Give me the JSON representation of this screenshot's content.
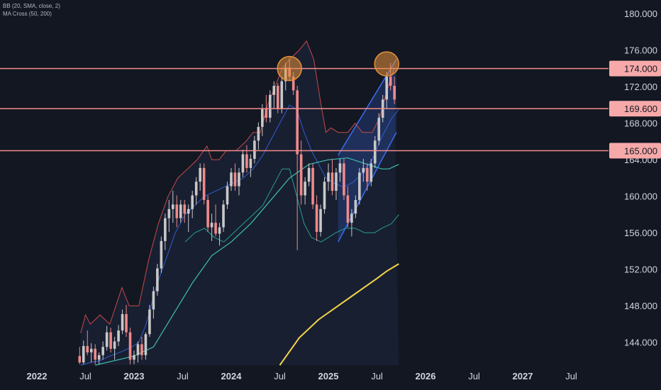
{
  "indicators": {
    "bb": "BB (20, SMA, close, 2)",
    "ma": "MA Cross (50, 200)"
  },
  "colors": {
    "background": "#131722",
    "axis_text": "#d1d4dc",
    "candle_up": "#c8c8c8",
    "candle_down": "#f08a8a",
    "bb_upper": "#c44a4a",
    "bb_basis": "#2f5fd0",
    "bb_lower": "#2a9d8f",
    "bb_fill": "#1e2a44",
    "ma_slow": "#f5d44a",
    "level_line": "#f28b8b",
    "level_label_bg": "#f7a9a9",
    "level_label_text": "#131722",
    "highlight": "#e8923a",
    "channel": "#3a6df0"
  },
  "chart_data": {
    "type": "candlestick",
    "symbol_interval": "weekly",
    "price_axis": {
      "ticks": [
        180,
        176,
        172,
        168,
        164,
        160,
        156,
        152,
        148,
        144
      ],
      "tick_labels": [
        "180.000",
        "176.000",
        "172.000",
        "168.000",
        "164.000",
        "160.000",
        "156.000",
        "152.000",
        "148.000",
        "144.000"
      ],
      "ylim": [
        141.5,
        181.5
      ]
    },
    "time_axis": {
      "ticks": [
        "2022",
        "Jul",
        "2023",
        "Jul",
        "2024",
        "Jul",
        "2025",
        "Jul",
        "2026",
        "Jul",
        "2027",
        "Jul"
      ],
      "tick_index": [
        0,
        1,
        2,
        3,
        4,
        5,
        6,
        7,
        8,
        9,
        10,
        11
      ]
    },
    "horizontal_levels": [
      {
        "value": 174.0,
        "label": "174.000"
      },
      {
        "value": 169.6,
        "label": "169.600"
      },
      {
        "value": 165.0,
        "label": "165.000"
      }
    ],
    "highlights": [
      {
        "time": 5.2,
        "value": 174.0
      },
      {
        "time": 7.2,
        "value": 174.5
      }
    ],
    "ascending_channel": {
      "upper": [
        [
          6.2,
          164.5
        ],
        [
          7.4,
          175.0
        ]
      ],
      "lower": [
        [
          6.2,
          155.0
        ],
        [
          7.4,
          167.0
        ]
      ]
    },
    "bollinger": {
      "upper": [
        [
          0.9,
          145
        ],
        [
          1.0,
          147
        ],
        [
          1.1,
          146
        ],
        [
          1.3,
          147
        ],
        [
          1.5,
          146
        ],
        [
          1.75,
          150
        ],
        [
          1.9,
          148
        ],
        [
          2.1,
          148
        ],
        [
          2.3,
          153
        ],
        [
          2.5,
          157
        ],
        [
          2.7,
          160
        ],
        [
          2.9,
          162
        ],
        [
          3.1,
          163
        ],
        [
          3.3,
          164
        ],
        [
          3.5,
          165.5
        ],
        [
          3.6,
          164
        ],
        [
          3.75,
          164
        ],
        [
          3.9,
          165
        ],
        [
          4.1,
          165
        ],
        [
          4.3,
          166
        ],
        [
          4.45,
          167
        ],
        [
          4.6,
          167
        ],
        [
          4.75,
          170
        ],
        [
          4.9,
          172
        ],
        [
          5.05,
          174
        ],
        [
          5.2,
          175
        ],
        [
          5.4,
          176
        ],
        [
          5.55,
          177
        ],
        [
          5.7,
          175
        ],
        [
          5.85,
          170
        ],
        [
          5.95,
          167
        ],
        [
          6.05,
          167.5
        ],
        [
          6.2,
          167
        ],
        [
          6.4,
          167
        ],
        [
          6.55,
          168
        ],
        [
          6.7,
          167
        ],
        [
          6.9,
          167
        ],
        [
          7.05,
          168.5
        ],
        [
          7.2,
          171.5
        ],
        [
          7.35,
          174
        ]
      ],
      "basis": [
        [
          0.9,
          141.5
        ],
        [
          1.1,
          141.8
        ],
        [
          1.3,
          142
        ],
        [
          1.5,
          142.5
        ],
        [
          1.75,
          143
        ],
        [
          1.95,
          143.5
        ],
        [
          2.1,
          144
        ],
        [
          2.25,
          146
        ],
        [
          2.45,
          150
        ],
        [
          2.65,
          153
        ],
        [
          2.85,
          156
        ],
        [
          3.05,
          158
        ],
        [
          3.25,
          159
        ],
        [
          3.45,
          160
        ],
        [
          3.65,
          160.5
        ],
        [
          3.85,
          161
        ],
        [
          4.05,
          161.5
        ],
        [
          4.25,
          162
        ],
        [
          4.45,
          163
        ],
        [
          4.65,
          164.5
        ],
        [
          4.85,
          166.5
        ],
        [
          5.05,
          168.5
        ],
        [
          5.2,
          170
        ],
        [
          5.35,
          169.5
        ],
        [
          5.5,
          167
        ],
        [
          5.65,
          165
        ],
        [
          5.8,
          163.5
        ],
        [
          5.95,
          162
        ],
        [
          6.1,
          161.5
        ],
        [
          6.3,
          161
        ],
        [
          6.5,
          161.5
        ],
        [
          6.7,
          162.5
        ],
        [
          6.9,
          164
        ],
        [
          7.1,
          166.5
        ],
        [
          7.3,
          168.5
        ],
        [
          7.45,
          169.5
        ]
      ],
      "lower": [
        [
          3.05,
          155
        ],
        [
          3.25,
          156
        ],
        [
          3.45,
          156.5
        ],
        [
          3.65,
          155.5
        ],
        [
          3.85,
          155
        ],
        [
          4.05,
          156
        ],
        [
          4.25,
          157
        ],
        [
          4.45,
          158
        ],
        [
          4.65,
          159
        ],
        [
          4.85,
          161
        ],
        [
          5.05,
          163
        ],
        [
          5.2,
          163
        ],
        [
          5.35,
          160
        ],
        [
          5.5,
          157
        ],
        [
          5.65,
          155.5
        ],
        [
          5.85,
          155
        ],
        [
          6.0,
          155.5
        ],
        [
          6.15,
          156
        ],
        [
          6.35,
          156.5
        ],
        [
          6.55,
          156.5
        ],
        [
          6.75,
          156
        ],
        [
          6.95,
          156
        ],
        [
          7.1,
          156.5
        ],
        [
          7.3,
          157
        ],
        [
          7.45,
          158
        ]
      ]
    },
    "ma_fast": [
      [
        1.2,
        141.5
      ],
      [
        1.6,
        142
      ],
      [
        2.0,
        142.5
      ],
      [
        2.4,
        143.5
      ],
      [
        2.8,
        147
      ],
      [
        3.2,
        150.5
      ],
      [
        3.6,
        153.5
      ],
      [
        4.0,
        155
      ],
      [
        4.4,
        157
      ],
      [
        4.8,
        159.5
      ],
      [
        5.2,
        162
      ],
      [
        5.6,
        163.5
      ],
      [
        6.0,
        164
      ],
      [
        6.4,
        164.2
      ],
      [
        6.8,
        163.5
      ],
      [
        7.1,
        163
      ],
      [
        7.25,
        163
      ],
      [
        7.45,
        163.5
      ]
    ],
    "ma_slow": [
      [
        5.0,
        141.5
      ],
      [
        5.4,
        144.5
      ],
      [
        5.8,
        146.5
      ],
      [
        6.2,
        148
      ],
      [
        6.6,
        149.5
      ],
      [
        7.0,
        151
      ],
      [
        7.2,
        151.8
      ],
      [
        7.45,
        152.6
      ]
    ],
    "candles": [
      [
        0.88,
        142.5,
        143.5,
        141.6,
        141.8
      ],
      [
        0.96,
        141.8,
        144.2,
        141.6,
        143.6
      ],
      [
        1.04,
        143.6,
        145.3,
        142.6,
        142.9
      ],
      [
        1.12,
        142.9,
        143.9,
        141.8,
        143.3
      ],
      [
        1.2,
        143.3,
        143.8,
        141.6,
        142.1
      ],
      [
        1.28,
        142.1,
        142.9,
        141.6,
        142.6
      ],
      [
        1.36,
        142.6,
        144.1,
        142.1,
        143.5
      ],
      [
        1.44,
        143.5,
        145.8,
        143.1,
        145.1
      ],
      [
        1.52,
        145.1,
        145.6,
        142.9,
        143.3
      ],
      [
        1.6,
        143.3,
        144.6,
        142.1,
        144.1
      ],
      [
        1.68,
        144.1,
        145.9,
        143.6,
        145.3
      ],
      [
        1.76,
        145.3,
        147.6,
        144.9,
        147.1
      ],
      [
        1.84,
        147.1,
        148.1,
        144.6,
        145.1
      ],
      [
        1.92,
        145.1,
        145.6,
        141.6,
        142.1
      ],
      [
        2.0,
        142.1,
        143.1,
        141.6,
        142.6
      ],
      [
        2.08,
        142.6,
        144.1,
        141.8,
        143.8
      ],
      [
        2.16,
        143.8,
        144.6,
        142.1,
        142.6
      ],
      [
        2.24,
        142.6,
        145.1,
        142.1,
        144.9
      ],
      [
        2.32,
        144.9,
        148.1,
        144.6,
        147.6
      ],
      [
        2.4,
        147.6,
        150.1,
        146.6,
        149.6
      ],
      [
        2.48,
        149.6,
        152.6,
        149.1,
        152.1
      ],
      [
        2.56,
        152.1,
        155.6,
        151.6,
        155.1
      ],
      [
        2.64,
        155.1,
        158.1,
        154.1,
        157.6
      ],
      [
        2.72,
        157.6,
        159.6,
        156.1,
        158.6
      ],
      [
        2.8,
        158.6,
        160.6,
        157.1,
        159.1
      ],
      [
        2.88,
        159.1,
        160.1,
        156.6,
        157.6
      ],
      [
        2.96,
        157.6,
        159.6,
        157.1,
        159.1
      ],
      [
        3.04,
        159.1,
        159.6,
        157.1,
        158.1
      ],
      [
        3.12,
        158.1,
        159.1,
        156.1,
        158.6
      ],
      [
        3.2,
        158.6,
        160.6,
        157.6,
        160.1
      ],
      [
        3.28,
        160.1,
        162.1,
        159.1,
        161.6
      ],
      [
        3.36,
        161.6,
        163.6,
        160.6,
        163.1
      ],
      [
        3.44,
        163.1,
        163.6,
        159.1,
        159.6
      ],
      [
        3.52,
        159.6,
        160.1,
        156.1,
        156.6
      ],
      [
        3.6,
        156.6,
        158.1,
        155.1,
        157.1
      ],
      [
        3.68,
        157.1,
        159.1,
        155.6,
        155.9
      ],
      [
        3.76,
        155.9,
        157.1,
        154.6,
        156.6
      ],
      [
        3.84,
        156.6,
        159.6,
        156.1,
        159.1
      ],
      [
        3.92,
        159.1,
        161.6,
        158.6,
        161.1
      ],
      [
        4.0,
        161.1,
        163.1,
        160.6,
        162.6
      ],
      [
        4.08,
        162.6,
        163.6,
        160.6,
        161.1
      ],
      [
        4.16,
        161.1,
        163.1,
        160.1,
        162.6
      ],
      [
        4.24,
        162.6,
        165.1,
        162.1,
        164.6
      ],
      [
        4.32,
        164.6,
        165.6,
        162.6,
        163.1
      ],
      [
        4.4,
        163.1,
        164.6,
        162.1,
        164.1
      ],
      [
        4.48,
        164.1,
        166.6,
        163.6,
        166.1
      ],
      [
        4.56,
        166.1,
        168.1,
        165.1,
        167.6
      ],
      [
        4.64,
        167.6,
        170.1,
        166.6,
        169.6
      ],
      [
        4.72,
        169.6,
        171.1,
        168.1,
        168.6
      ],
      [
        4.8,
        168.6,
        171.6,
        168.1,
        171.1
      ],
      [
        4.88,
        171.1,
        172.6,
        169.6,
        172.1
      ],
      [
        4.96,
        172.1,
        172.4,
        169.1,
        169.6
      ],
      [
        5.04,
        169.6,
        173.1,
        169.1,
        172.6
      ],
      [
        5.12,
        172.6,
        174.6,
        171.6,
        174.1
      ],
      [
        5.2,
        174.1,
        175.1,
        172.6,
        173.1
      ],
      [
        5.28,
        173.1,
        173.6,
        171.1,
        171.6
      ],
      [
        5.36,
        171.6,
        172.1,
        154.1,
        164.6
      ],
      [
        5.44,
        164.6,
        166.1,
        159.1,
        160.1
      ],
      [
        5.52,
        160.1,
        162.1,
        159.1,
        161.6
      ],
      [
        5.6,
        161.6,
        163.6,
        161.1,
        163.1
      ],
      [
        5.68,
        163.1,
        163.6,
        158.6,
        159.1
      ],
      [
        5.76,
        159.1,
        160.1,
        155.1,
        156.1
      ],
      [
        5.84,
        156.1,
        159.1,
        155.6,
        158.6
      ],
      [
        5.92,
        158.6,
        162.1,
        158.1,
        161.6
      ],
      [
        6.0,
        161.6,
        163.6,
        160.6,
        162.6
      ],
      [
        6.08,
        162.6,
        164.1,
        160.1,
        160.6
      ],
      [
        6.16,
        160.6,
        163.1,
        159.6,
        162.6
      ],
      [
        6.24,
        162.6,
        164.1,
        161.6,
        163.6
      ],
      [
        6.32,
        163.6,
        164.1,
        159.6,
        160.1
      ],
      [
        6.4,
        160.1,
        161.1,
        156.6,
        157.1
      ],
      [
        6.48,
        157.1,
        158.6,
        155.6,
        158.1
      ],
      [
        6.56,
        158.1,
        160.1,
        157.6,
        159.6
      ],
      [
        6.64,
        159.6,
        163.1,
        159.1,
        162.6
      ],
      [
        6.72,
        162.6,
        164.1,
        161.6,
        163.1
      ],
      [
        6.8,
        163.1,
        163.6,
        160.6,
        161.6
      ],
      [
        6.88,
        161.6,
        164.1,
        161.1,
        163.6
      ],
      [
        6.96,
        163.6,
        166.6,
        163.1,
        166.1
      ],
      [
        7.04,
        166.1,
        169.1,
        165.6,
        168.6
      ],
      [
        7.12,
        168.6,
        171.1,
        168.1,
        170.6
      ],
      [
        7.2,
        170.6,
        173.6,
        169.6,
        173.1
      ],
      [
        7.28,
        173.1,
        174.6,
        171.6,
        172.1
      ],
      [
        7.36,
        172.1,
        173.1,
        170.1,
        170.6
      ]
    ]
  }
}
